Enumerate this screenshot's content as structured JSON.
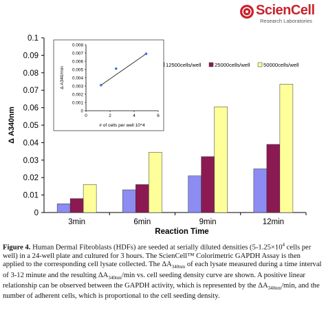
{
  "logo": {
    "text": "ScienCell",
    "subtext": "Research Laboratories"
  },
  "chart_data": [
    {
      "type": "bar",
      "categories": [
        "3min",
        "6min",
        "9min",
        "12min"
      ],
      "series": [
        {
          "name": "12500cells/well",
          "color": "#8c8cf2",
          "values": [
            0.005,
            0.013,
            0.021,
            0.025
          ]
        },
        {
          "name": "25000cells/well",
          "color": "#8b1a52",
          "values": [
            0.008,
            0.016,
            0.032,
            0.039
          ]
        },
        {
          "name": "50000cells/well",
          "color": "#ffff99",
          "values": [
            0.016,
            0.0345,
            0.0605,
            0.0735
          ]
        }
      ],
      "xlabel": "Reaction Time",
      "ylabel": "Δ A340nm",
      "ylim": [
        0,
        0.1
      ],
      "yticks": [
        "0",
        "0.01",
        "0.02",
        "0.03",
        "0.04",
        "0.05",
        "0.06",
        "0.07",
        "0.08",
        "0.09",
        "0.1"
      ],
      "legend": "top-right",
      "grid": false
    },
    {
      "type": "scatter",
      "points": [
        {
          "x": 1.25,
          "y": 0.0031
        },
        {
          "x": 2.5,
          "y": 0.0051
        },
        {
          "x": 5,
          "y": 0.0069
        }
      ],
      "trendline": true,
      "xlabel": "# of cells per well 10^4",
      "ylabel": "Δ A340/min",
      "xlim": [
        0,
        6
      ],
      "ylim": [
        0,
        0.008
      ],
      "xticks": [
        "0",
        "2",
        "4",
        "6"
      ],
      "yticks": [
        "0",
        "0.001",
        "0.002",
        "0.003",
        "0.004",
        "0.005",
        "0.006",
        "0.007",
        "0.008"
      ],
      "grid": false
    }
  ],
  "caption": {
    "figure_label": "Figure 4.",
    "text_1": " Human Dermal Fibroblasts (HDFs) are seeded at serially diluted densities (5-1.25×10",
    "sup_1": "4",
    "text_2": " cells per well) in a 24-well plate and cultured for 3 hours. The ScienCell™ Colorimetric GAPDH Assay is then applied to the corresponding cell lysate collected. The ΔA",
    "sub_1": "340nm",
    "text_3": " of each lysate measured during a time interval of 3-12 minute and the resulting ΔA",
    "sub_2": "340nm",
    "text_4": "/min vs. cell seeding density curve are shown. A positive linear relationship can be observed between the GAPDH activity, which is represented by the ΔA",
    "sub_3": "340nm",
    "text_5": "/min, and the number of adherent cells, which is proportional to the cell seeding density."
  }
}
